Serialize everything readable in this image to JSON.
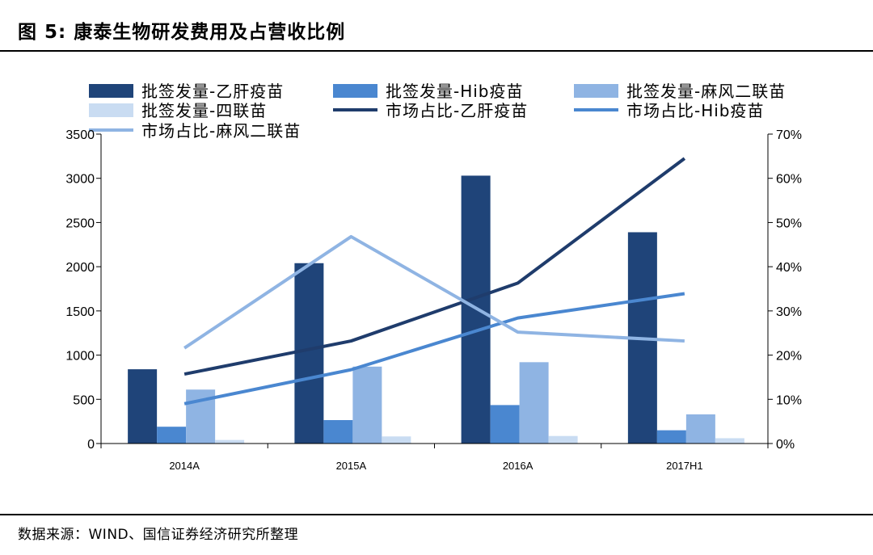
{
  "header": {
    "title": "图 5:  康泰生物研发费用及占营收比例"
  },
  "footer": {
    "source": "数据来源：WIND、国信证券经济研究所整理"
  },
  "chart_data": {
    "type": "bar",
    "title": "",
    "xlabel": "",
    "ylabel": "",
    "categories": [
      "2014A",
      "2015A",
      "2016A",
      "2017H1"
    ],
    "ylim": [
      0,
      3500
    ],
    "yticks": [
      "0",
      "500",
      "1000",
      "1500",
      "2000",
      "2500",
      "3000",
      "3500"
    ],
    "y2lim": [
      0,
      70
    ],
    "y2ticks": [
      "0%",
      "10%",
      "20%",
      "30%",
      "40%",
      "50%",
      "60%",
      "70%"
    ],
    "grid": false,
    "legend_position": "top",
    "bar_series": [
      {
        "name": "批签发量-乙肝疫苗",
        "color": "#1f4479",
        "values": [
          840,
          2040,
          3030,
          2390
        ]
      },
      {
        "name": "批签发量-Hib疫苗",
        "color": "#4a87d0",
        "values": [
          190,
          265,
          435,
          150
        ]
      },
      {
        "name": "批签发量-麻风二联苗",
        "color": "#8fb4e3",
        "values": [
          610,
          870,
          920,
          330
        ]
      },
      {
        "name": "批签发量-四联苗",
        "color": "#c9dcf2",
        "values": [
          40,
          80,
          85,
          60
        ]
      }
    ],
    "line_series": [
      {
        "name": "市场占比-乙肝疫苗",
        "color": "#1f3c6c",
        "axis": "right",
        "values": [
          15.7,
          23.2,
          36.3,
          64.5
        ]
      },
      {
        "name": "市场占比-Hib疫苗",
        "color": "#4a87d0",
        "axis": "right",
        "values": [
          9.0,
          16.7,
          28.4,
          33.9
        ]
      },
      {
        "name": "市场占比-麻风二联苗",
        "color": "#8fb4e3",
        "axis": "right",
        "values": [
          21.6,
          46.8,
          25.2,
          23.2
        ]
      }
    ]
  }
}
